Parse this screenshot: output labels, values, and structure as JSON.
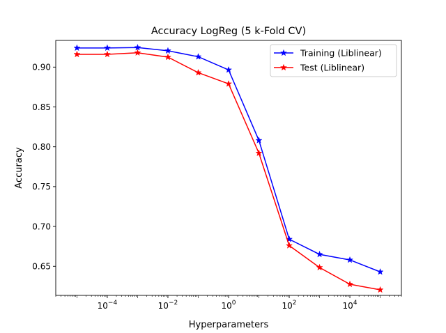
{
  "chart_data": {
    "type": "line",
    "title": "Accuracy LogReg (5 k-Fold CV)",
    "xlabel": "Hyperparameters",
    "ylabel": "Accuracy",
    "xscale": "log",
    "x": [
      1e-05,
      0.0001,
      0.001,
      0.01,
      0.1,
      1,
      10,
      100,
      1000,
      10000,
      100000
    ],
    "xlim": [
      2e-06,
      500000
    ],
    "ylim": [
      0.6135,
      0.9335
    ],
    "x_ticks": [
      {
        "value": 0.0001,
        "base": "10",
        "exp": "−4"
      },
      {
        "value": 0.01,
        "base": "10",
        "exp": "−2"
      },
      {
        "value": 1,
        "base": "10",
        "exp": "0"
      },
      {
        "value": 100,
        "base": "10",
        "exp": "2"
      },
      {
        "value": 10000,
        "base": "10",
        "exp": "4"
      }
    ],
    "y_ticks": [
      {
        "value": 0.65,
        "label": "0.65"
      },
      {
        "value": 0.7,
        "label": "0.70"
      },
      {
        "value": 0.75,
        "label": "0.75"
      },
      {
        "value": 0.8,
        "label": "0.80"
      },
      {
        "value": 0.85,
        "label": "0.85"
      },
      {
        "value": 0.9,
        "label": "0.90"
      }
    ],
    "grid": false,
    "legend_position": "top-right",
    "series": [
      {
        "name": "Training (Liblinear)",
        "color": "#0000ff",
        "marker": "star",
        "values": [
          0.924,
          0.924,
          0.9245,
          0.9205,
          0.913,
          0.8965,
          0.808,
          0.684,
          0.665,
          0.658,
          0.643
        ]
      },
      {
        "name": "Test (Liblinear)",
        "color": "#ff0000",
        "marker": "star",
        "values": [
          0.916,
          0.916,
          0.918,
          0.9125,
          0.893,
          0.879,
          0.792,
          0.676,
          0.6485,
          0.6275,
          0.6205
        ]
      }
    ]
  }
}
